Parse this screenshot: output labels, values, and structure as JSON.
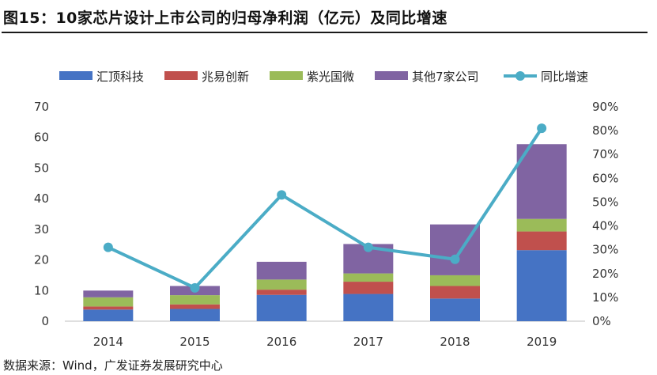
{
  "title": "图15：10家芯片设计上市公司的归母净利润（亿元）及同比增速",
  "source": "数据来源：Wind，广发证券发展研究中心",
  "chart_data": {
    "type": "bar",
    "stacked": true,
    "categories": [
      "2014",
      "2015",
      "2016",
      "2017",
      "2018",
      "2019"
    ],
    "series": [
      {
        "name": "汇顶科技",
        "color": "#4573c4",
        "values": [
          3.8,
          4.0,
          8.6,
          8.9,
          7.4,
          23.2
        ]
      },
      {
        "name": "兆易创新",
        "color": "#c0504d",
        "values": [
          1.0,
          1.5,
          1.7,
          4.0,
          4.1,
          6.1
        ]
      },
      {
        "name": "紫光国微",
        "color": "#9bbb59",
        "values": [
          3.0,
          3.0,
          3.3,
          2.7,
          3.5,
          4.1
        ]
      },
      {
        "name": "其他7家公司",
        "color": "#8064a2",
        "values": [
          2.2,
          3.0,
          5.8,
          9.6,
          16.6,
          24.4
        ]
      }
    ],
    "line": {
      "name": "同比增速",
      "color": "#4bacc6",
      "values": [
        0.31,
        0.14,
        0.53,
        0.31,
        0.26,
        0.81
      ]
    },
    "ylim": [
      0,
      70
    ],
    "yticks": [
      "0",
      "10",
      "20",
      "30",
      "40",
      "50",
      "60",
      "70"
    ],
    "y2lim": [
      0,
      0.9
    ],
    "y2ticks": [
      "0%",
      "10%",
      "20%",
      "30%",
      "40%",
      "50%",
      "60%",
      "70%",
      "80%",
      "90%"
    ],
    "legend": "top"
  }
}
